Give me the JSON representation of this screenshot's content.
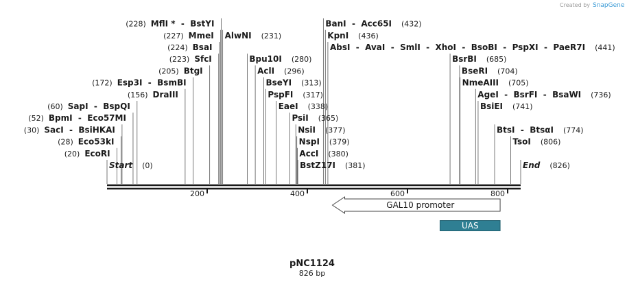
{
  "watermark": {
    "created_by": "Created by",
    "brand": "SnapGene"
  },
  "plasmid": {
    "name": "pNC1124",
    "length_label": "826 bp",
    "length": 826
  },
  "axis": {
    "ticks": [
      200,
      400,
      600,
      800
    ]
  },
  "features": [
    {
      "name": "GAL10 promoter",
      "start": 450,
      "end": 785,
      "direction": "reverse",
      "type": "promoter",
      "color": "#ffffff"
    },
    {
      "name": "UAS",
      "start": 665,
      "end": 785,
      "direction": "none",
      "type": "misc",
      "color": "#2f7f93"
    }
  ],
  "sites": [
    {
      "id": "start",
      "names": [
        "Start"
      ],
      "pos": 0,
      "italic": true,
      "side": "right",
      "row": 0
    },
    {
      "id": "ecori",
      "names": [
        "EcoRI"
      ],
      "pos": 20,
      "side": "left",
      "row": 1
    },
    {
      "id": "eco53ki",
      "names": [
        "Eco53kI"
      ],
      "pos": 28,
      "side": "left",
      "row": 2
    },
    {
      "id": "saci",
      "names": [
        "SacI",
        "BsiHKAI"
      ],
      "pos": 30,
      "side": "left",
      "row": 3
    },
    {
      "id": "bpmi",
      "names": [
        "BpmI",
        "Eco57MI"
      ],
      "pos": 52,
      "side": "left",
      "row": 4
    },
    {
      "id": "sapi",
      "names": [
        "SapI",
        "BspQI"
      ],
      "pos": 60,
      "side": "left",
      "row": 5
    },
    {
      "id": "draiii",
      "names": [
        "DraIII"
      ],
      "pos": 156,
      "side": "left",
      "row": 6
    },
    {
      "id": "esp3i",
      "names": [
        "Esp3I",
        "BsmBI"
      ],
      "pos": 172,
      "side": "left",
      "row": 7
    },
    {
      "id": "btgi",
      "names": [
        "BtgI"
      ],
      "pos": 205,
      "side": "left",
      "row": 8
    },
    {
      "id": "sfci",
      "names": [
        "SfcI"
      ],
      "pos": 223,
      "side": "left",
      "row": 9
    },
    {
      "id": "bsai",
      "names": [
        "BsaI"
      ],
      "pos": 224,
      "side": "left",
      "row": 10
    },
    {
      "id": "mmei",
      "names": [
        "MmeI"
      ],
      "pos": 227,
      "side": "left",
      "row": 11
    },
    {
      "id": "mfli",
      "names": [
        "MflI *",
        "BstYI"
      ],
      "pos": 228,
      "side": "left",
      "row": 12
    },
    {
      "id": "alwni",
      "names": [
        "AlwNI"
      ],
      "pos": 231,
      "side": "right",
      "row": 11
    },
    {
      "id": "bpu10i",
      "names": [
        "Bpu10I"
      ],
      "pos": 280,
      "side": "right",
      "row": 9
    },
    {
      "id": "acli",
      "names": [
        "AclI"
      ],
      "pos": 296,
      "side": "right",
      "row": 8
    },
    {
      "id": "bseyi",
      "names": [
        "BseYI"
      ],
      "pos": 313,
      "side": "right",
      "row": 7
    },
    {
      "id": "pspfi",
      "names": [
        "PspFI"
      ],
      "pos": 317,
      "side": "right",
      "row": 6
    },
    {
      "id": "eaei",
      "names": [
        "EaeI"
      ],
      "pos": 338,
      "side": "right",
      "row": 5
    },
    {
      "id": "psii",
      "names": [
        "PsiI"
      ],
      "pos": 365,
      "side": "right",
      "row": 4
    },
    {
      "id": "nsii",
      "names": [
        "NsiI"
      ],
      "pos": 377,
      "side": "right",
      "row": 3
    },
    {
      "id": "nspi",
      "names": [
        "NspI"
      ],
      "pos": 379,
      "side": "right",
      "row": 2
    },
    {
      "id": "acci",
      "names": [
        "AccI"
      ],
      "pos": 380,
      "side": "right",
      "row": 1
    },
    {
      "id": "bstz17i",
      "names": [
        "BstZ17I"
      ],
      "pos": 381,
      "side": "right",
      "row": 0
    },
    {
      "id": "bani",
      "names": [
        "BanI",
        "Acc65I"
      ],
      "pos": 432,
      "side": "right",
      "row": 12
    },
    {
      "id": "kpni",
      "names": [
        "KpnI"
      ],
      "pos": 436,
      "side": "right",
      "row": 11
    },
    {
      "id": "absi",
      "names": [
        "AbsI",
        "AvaI",
        "SmlI",
        "XhoI",
        "BsoBI",
        "PspXI",
        "PaeR7I"
      ],
      "pos": 441,
      "side": "right",
      "row": 10
    },
    {
      "id": "bsrbi",
      "names": [
        "BsrBI"
      ],
      "pos": 685,
      "side": "right",
      "row": 9
    },
    {
      "id": "bseri",
      "names": [
        "BseRI"
      ],
      "pos": 704,
      "side": "right",
      "row": 8
    },
    {
      "id": "nmeaiii",
      "names": [
        "NmeAIII"
      ],
      "pos": 705,
      "side": "right",
      "row": 7
    },
    {
      "id": "agei",
      "names": [
        "AgeI",
        "BsrFI",
        "BsaWI"
      ],
      "pos": 736,
      "side": "right",
      "row": 6
    },
    {
      "id": "bsiei",
      "names": [
        "BsiEI"
      ],
      "pos": 741,
      "side": "right",
      "row": 5
    },
    {
      "id": "btsi",
      "names": [
        "BtsI",
        "BtsαI"
      ],
      "pos": 774,
      "side": "right",
      "row": 3
    },
    {
      "id": "tsoi",
      "names": [
        "TsoI"
      ],
      "pos": 806,
      "side": "right",
      "row": 2
    },
    {
      "id": "end",
      "names": [
        "End"
      ],
      "pos": 826,
      "italic": true,
      "side": "right",
      "row": 0
    }
  ]
}
